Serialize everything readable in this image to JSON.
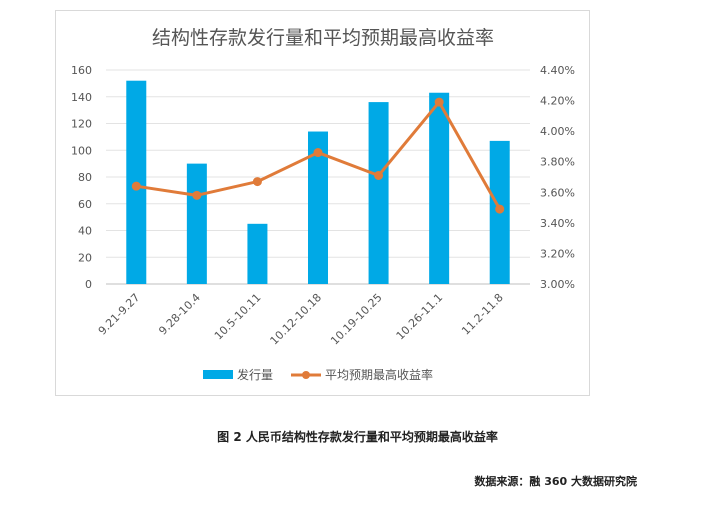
{
  "chart_data": {
    "type": "bar+line",
    "title": "结构性存款发行量和平均预期最高收益率",
    "categories": [
      "9.21-9.27",
      "9.28-10.4",
      "10.5-10.11",
      "10.12-10.18",
      "10.19-10.25",
      "10.26-11.1",
      "11.2-11.8"
    ],
    "series": [
      {
        "name": "发行量",
        "type": "bar",
        "axis": "left",
        "color": "#00a9e6",
        "values": [
          152,
          90,
          45,
          114,
          136,
          143,
          107
        ]
      },
      {
        "name": "平均预期最高收益率",
        "type": "line",
        "axis": "right",
        "color": "#e07b39",
        "values": [
          3.64,
          3.58,
          3.67,
          3.86,
          3.71,
          4.19,
          3.49
        ]
      }
    ],
    "y_left": {
      "min": 0,
      "max": 160,
      "step": 20,
      "ticks": [
        "0",
        "20",
        "40",
        "60",
        "80",
        "100",
        "120",
        "140",
        "160"
      ]
    },
    "y_right": {
      "min": 3.0,
      "max": 4.4,
      "step": 0.2,
      "ticks": [
        "3.00%",
        "3.20%",
        "3.40%",
        "3.60%",
        "3.80%",
        "4.00%",
        "4.20%",
        "4.40%"
      ]
    },
    "grid": true,
    "legend_position": "bottom"
  },
  "caption": "图 2 人民币结构性存款发行量和平均预期最高收益率",
  "source": "数据来源：融 360 大数据研究院"
}
